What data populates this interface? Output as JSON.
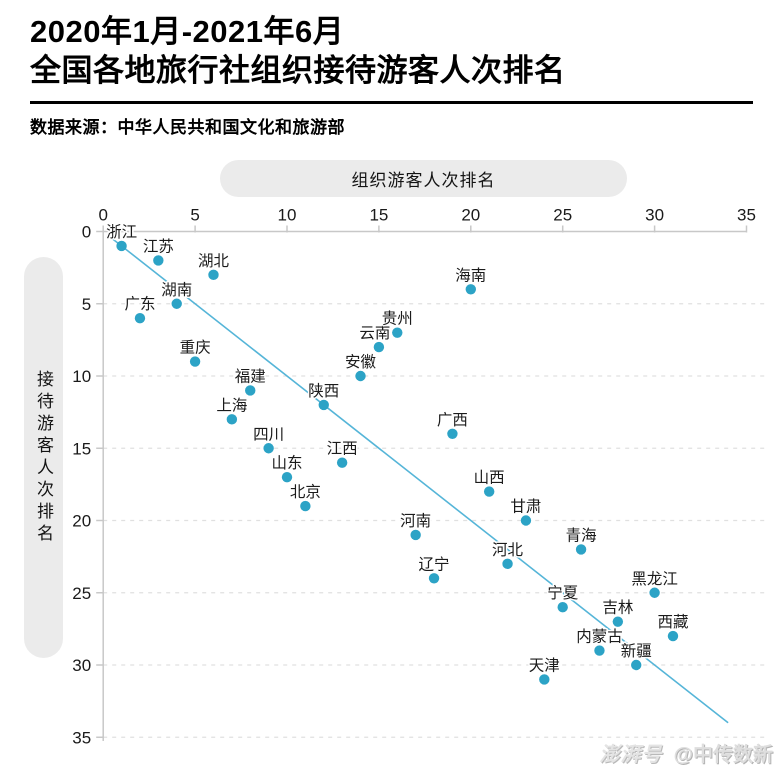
{
  "header": {
    "title_line1": "2020年1月-2021年6月",
    "title_line2": "全国各地旅行社组织接待游客人次排名",
    "source": "数据来源：中华人民共和国文化和旅游部"
  },
  "chart_data": {
    "type": "scatter",
    "title": "2020年1月-2021年6月全国各地旅行社组织接待游客人次排名",
    "xlabel": "组织游客人次排名",
    "ylabel": "接待游客人次排名",
    "xlim": [
      0,
      35
    ],
    "ylim": [
      0,
      35
    ],
    "x_axis_position": "top",
    "y_axis_inverted": true,
    "x_ticks": [
      0,
      5,
      10,
      15,
      20,
      25,
      30,
      35
    ],
    "y_ticks": [
      0,
      5,
      10,
      15,
      20,
      25,
      30,
      35
    ],
    "grid": "horizontal-dashed",
    "legend": "none",
    "trend_line": {
      "x1": 0.3,
      "y1": 0.3,
      "x2": 34,
      "y2": 34
    },
    "colors": {
      "point": "#2ca3c6",
      "trend": "#55b5d8",
      "grid": "#e0e0e0",
      "axis": "#c8c8c8",
      "tick_label": "#1a1a1a",
      "point_label": "#1b1b1b",
      "pill_bg": "#ebebeb"
    },
    "points": [
      {
        "name": "浙江",
        "x": 1,
        "y": 1
      },
      {
        "name": "广东",
        "x": 2,
        "y": 6
      },
      {
        "name": "江苏",
        "x": 3,
        "y": 2
      },
      {
        "name": "湖南",
        "x": 4,
        "y": 5
      },
      {
        "name": "重庆",
        "x": 5,
        "y": 9
      },
      {
        "name": "湖北",
        "x": 6,
        "y": 3
      },
      {
        "name": "上海",
        "x": 7,
        "y": 13
      },
      {
        "name": "福建",
        "x": 8,
        "y": 11
      },
      {
        "name": "四川",
        "x": 9,
        "y": 15
      },
      {
        "name": "山东",
        "x": 10,
        "y": 17
      },
      {
        "name": "北京",
        "x": 11,
        "y": 19
      },
      {
        "name": "陕西",
        "x": 12,
        "y": 12
      },
      {
        "name": "江西",
        "x": 13,
        "y": 16
      },
      {
        "name": "安徽",
        "x": 14,
        "y": 10
      },
      {
        "name": "云南",
        "x": 15,
        "y": 8,
        "dx": -4
      },
      {
        "name": "贵州",
        "x": 16,
        "y": 7
      },
      {
        "name": "河南",
        "x": 17,
        "y": 21
      },
      {
        "name": "辽宁",
        "x": 18,
        "y": 24
      },
      {
        "name": "广西",
        "x": 19,
        "y": 14
      },
      {
        "name": "海南",
        "x": 20,
        "y": 4
      },
      {
        "name": "山西",
        "x": 21,
        "y": 18
      },
      {
        "name": "河北",
        "x": 22,
        "y": 23
      },
      {
        "name": "甘肃",
        "x": 23,
        "y": 20
      },
      {
        "name": "天津",
        "x": 24,
        "y": 31
      },
      {
        "name": "宁夏",
        "x": 25,
        "y": 26
      },
      {
        "name": "青海",
        "x": 26,
        "y": 22
      },
      {
        "name": "内蒙古",
        "x": 27,
        "y": 29
      },
      {
        "name": "吉林",
        "x": 28,
        "y": 27
      },
      {
        "name": "新疆",
        "x": 29,
        "y": 30
      },
      {
        "name": "黑龙江",
        "x": 30,
        "y": 25
      },
      {
        "name": "西藏",
        "x": 31,
        "y": 28
      }
    ]
  },
  "watermark": {
    "brand": "澎湃号",
    "credit": "@中传数新"
  }
}
